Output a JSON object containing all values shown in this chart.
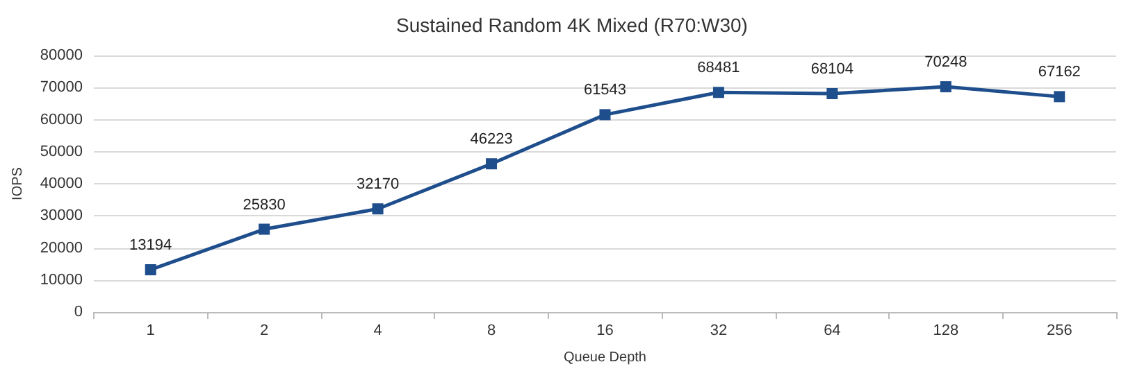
{
  "chart_data": {
    "type": "line",
    "title": "Sustained Random 4K Mixed (R70:W30)",
    "xlabel": "Queue Depth",
    "ylabel": "IOPS",
    "categories": [
      "1",
      "2",
      "4",
      "8",
      "16",
      "32",
      "64",
      "128",
      "256"
    ],
    "series": [
      {
        "color": "#1f4e8c",
        "values": [
          13194,
          25830,
          32170,
          46223,
          61543,
          68481,
          68104,
          70248,
          67162
        ]
      }
    ],
    "ylim": [
      0,
      80000
    ],
    "yticks": [
      0,
      10000,
      20000,
      30000,
      40000,
      50000,
      60000,
      70000,
      80000
    ],
    "grid": "y",
    "marker": "square",
    "line_style": "solid",
    "data_labels": true
  }
}
